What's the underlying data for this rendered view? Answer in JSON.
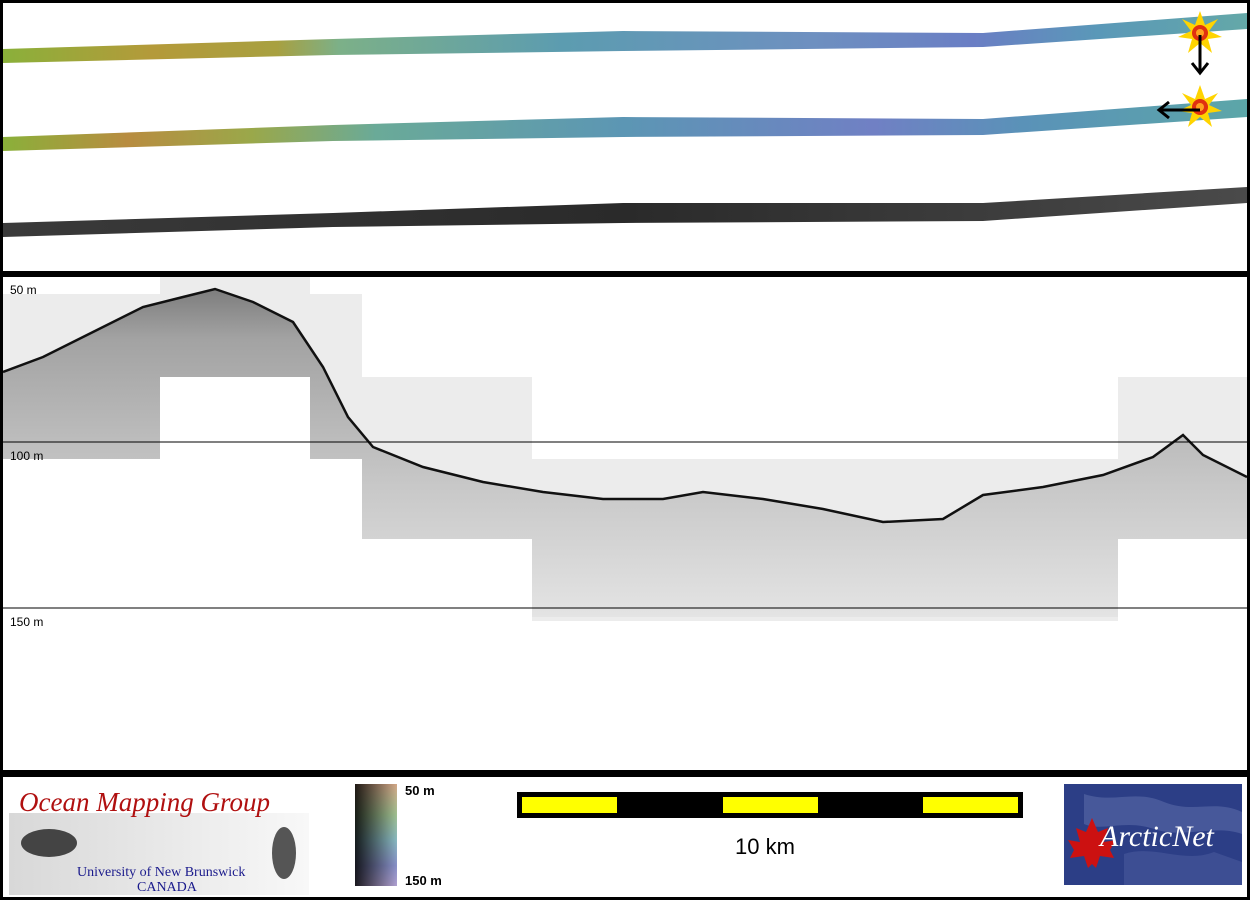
{
  "profile": {
    "depth_labels": [
      "50 m",
      "100 m",
      "150 m"
    ]
  },
  "footer": {
    "omg": {
      "title": "Ocean Mapping Group",
      "subtitle_line1": "University of New Brunswick",
      "subtitle_line2": "CANADA"
    },
    "colorbar": {
      "top_label": "50 m",
      "bottom_label": "150 m"
    },
    "scalebar": {
      "label": "10 km",
      "colors": {
        "fill": "#ffff00",
        "frame": "#000000"
      }
    },
    "arcticnet": {
      "name": "ArcticNet",
      "colors": {
        "background": "#2c3e86",
        "leaf": "#cc1111"
      }
    }
  },
  "markers": {
    "colors": {
      "star": "#ffd400",
      "center": "#e03010"
    },
    "icons": [
      "sunburst-marker-icon",
      "arrow-down-icon",
      "arrow-left-icon"
    ]
  }
}
